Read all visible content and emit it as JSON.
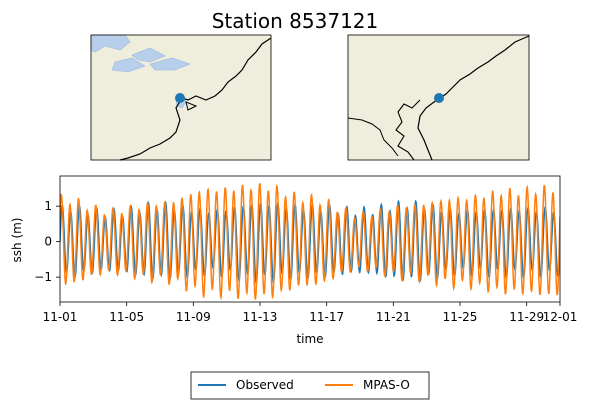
{
  "figure": {
    "title": "Station 8537121"
  },
  "maps": {
    "land_color": "#efeedc",
    "water_color": "#b7cfea",
    "station_marker_color": "#1f77b4"
  },
  "chart_data": {
    "type": "line",
    "xlabel": "time",
    "ylabel": "ssh (m)",
    "x_start": "2020-11-01",
    "x_end": "2020-12-01",
    "x_ticks": [
      "11-01",
      "11-05",
      "11-09",
      "11-13",
      "11-17",
      "11-21",
      "11-25",
      "11-29",
      "12-01"
    ],
    "y_ticks": [
      "1",
      "0",
      "−1"
    ],
    "ylim": [
      -1.7,
      1.85
    ],
    "x_tick_values": [
      0,
      4,
      8,
      12,
      16,
      20,
      24,
      28,
      30
    ],
    "y_tick_values": [
      1,
      0,
      -1
    ],
    "series": [
      {
        "name": "Observed",
        "color": "#1f77b4",
        "tidal_period_hours": 12.42,
        "amplitude_peaks_m": [
          [
            0,
            0.95
          ],
          [
            3,
            0.8
          ],
          [
            6,
            1.0
          ],
          [
            9,
            0.85
          ],
          [
            12,
            1.05
          ],
          [
            15,
            0.95
          ],
          [
            18,
            0.85
          ],
          [
            21,
            1.05
          ],
          [
            24,
            0.85
          ],
          [
            27,
            0.9
          ],
          [
            30,
            0.9
          ]
        ]
      },
      {
        "name": "MPAS-O",
        "color": "#ff7f0e",
        "tidal_period_hours": 12.42,
        "amplitude_peaks_m": [
          [
            0,
            1.2
          ],
          [
            3,
            0.85
          ],
          [
            6,
            1.05
          ],
          [
            9,
            1.45
          ],
          [
            12,
            1.55
          ],
          [
            15,
            1.2
          ],
          [
            18,
            0.75
          ],
          [
            21,
            1.0
          ],
          [
            24,
            1.2
          ],
          [
            27,
            1.4
          ],
          [
            30,
            1.5
          ]
        ]
      }
    ],
    "legend_position": "bottom-center"
  }
}
